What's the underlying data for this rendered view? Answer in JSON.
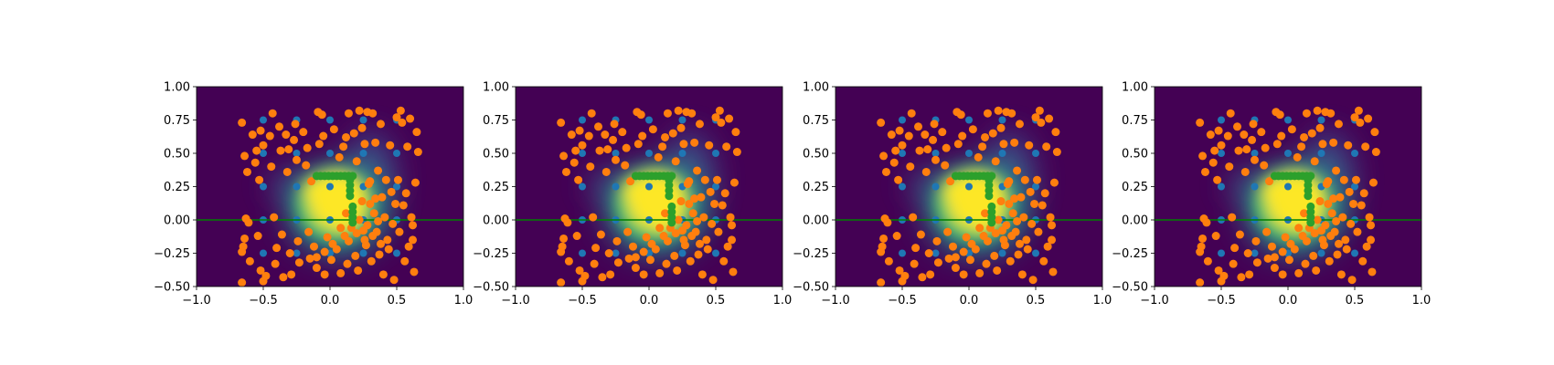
{
  "figure": {
    "panel_count": 4
  },
  "colors": {
    "background_low": "#440154",
    "mid_blue": "#3b528b",
    "mid_teal": "#21918c",
    "mid_green": "#5ec962",
    "background_high": "#fde725",
    "orange_points": "#ff7f0e",
    "blue_points": "#1f77b4",
    "green_points": "#2ca02c",
    "horizontal_line": "#008000"
  },
  "chart_data": [
    {
      "type": "scatter",
      "title": "",
      "xlabel": "",
      "ylabel": "",
      "xlim": [
        -1.0,
        1.0
      ],
      "ylim": [
        -0.5,
        1.0
      ],
      "xticks": [
        "−1.0",
        "−0.5",
        "0.0",
        "0.5",
        "1.0"
      ],
      "yticks": [
        "1.00",
        "0.75",
        "0.50",
        "0.25",
        "0.00",
        "−0.25",
        "−0.50"
      ],
      "grid": false,
      "legend": "none",
      "background": "heatmap",
      "hline_y": 0.0
    },
    {
      "type": "scatter",
      "title": "",
      "xlabel": "",
      "ylabel": "",
      "xlim": [
        -1.0,
        1.0
      ],
      "ylim": [
        -0.5,
        1.0
      ],
      "xticks": [
        "−1.0",
        "−0.5",
        "0.0",
        "0.5",
        "1.0"
      ],
      "yticks": [
        "1.00",
        "0.75",
        "0.50",
        "0.25",
        "0.00",
        "−0.25",
        "−0.50"
      ],
      "grid": false,
      "legend": "none",
      "background": "heatmap",
      "hline_y": 0.0
    },
    {
      "type": "scatter",
      "title": "",
      "xlabel": "",
      "ylabel": "",
      "xlim": [
        -1.0,
        1.0
      ],
      "ylim": [
        -0.5,
        1.0
      ],
      "xticks": [
        "−1.0",
        "−0.5",
        "0.0",
        "0.5",
        "1.0"
      ],
      "yticks": [
        "1.00",
        "0.75",
        "0.50",
        "0.25",
        "0.00",
        "−0.25",
        "−0.50"
      ],
      "grid": false,
      "legend": "none",
      "background": "heatmap",
      "hline_y": 0.0
    },
    {
      "type": "scatter",
      "title": "",
      "xlabel": "",
      "ylabel": "",
      "xlim": [
        -1.0,
        1.0
      ],
      "ylim": [
        -0.5,
        1.0
      ],
      "xticks": [
        "−1.0",
        "−0.5",
        "0.0",
        "0.5",
        "1.0"
      ],
      "yticks": [
        "1.00",
        "0.75",
        "0.50",
        "0.25",
        "0.00",
        "−0.25",
        "−0.50"
      ],
      "grid": false,
      "legend": "none",
      "background": "heatmap",
      "hline_y": 0.0
    }
  ],
  "series": {
    "blue": [
      [
        -0.5,
        0.75
      ],
      [
        -0.25,
        0.75
      ],
      [
        0.0,
        0.75
      ],
      [
        0.25,
        0.75
      ],
      [
        0.5,
        0.75
      ],
      [
        -0.5,
        0.5
      ],
      [
        -0.25,
        0.5
      ],
      [
        0.0,
        0.5
      ],
      [
        0.25,
        0.5
      ],
      [
        0.5,
        0.5
      ],
      [
        -0.5,
        0.25
      ],
      [
        -0.25,
        0.25
      ],
      [
        0.0,
        0.25
      ],
      [
        0.25,
        0.25
      ],
      [
        0.5,
        0.25
      ],
      [
        -0.5,
        0.0
      ],
      [
        -0.25,
        0.0
      ],
      [
        0.0,
        0.0
      ],
      [
        0.25,
        0.0
      ],
      [
        0.5,
        0.0
      ],
      [
        -0.5,
        -0.25
      ],
      [
        -0.25,
        -0.25
      ],
      [
        0.0,
        -0.25
      ],
      [
        0.25,
        -0.25
      ],
      [
        0.5,
        -0.25
      ]
    ],
    "green": [
      [
        -0.1,
        0.33
      ],
      [
        -0.07,
        0.33
      ],
      [
        -0.04,
        0.33
      ],
      [
        -0.01,
        0.33
      ],
      [
        0.02,
        0.33
      ],
      [
        0.05,
        0.33
      ],
      [
        0.08,
        0.33
      ],
      [
        0.11,
        0.33
      ],
      [
        0.14,
        0.33
      ],
      [
        0.17,
        0.33
      ],
      [
        0.15,
        0.3
      ],
      [
        0.15,
        0.26
      ],
      [
        0.15,
        0.22
      ],
      [
        0.15,
        0.18
      ],
      [
        0.17,
        0.1
      ],
      [
        0.17,
        0.06
      ],
      [
        0.17,
        0.02
      ],
      [
        0.17,
        -0.02
      ]
    ],
    "orange": [
      [
        -0.66,
        0.73
      ],
      [
        -0.64,
        0.48
      ],
      [
        -0.62,
        0.36
      ],
      [
        -0.63,
        0.01
      ],
      [
        -0.61,
        -0.02
      ],
      [
        -0.64,
        -0.14
      ],
      [
        -0.65,
        -0.2
      ],
      [
        -0.66,
        -0.24
      ],
      [
        -0.6,
        -0.31
      ],
      [
        -0.66,
        -0.47
      ],
      [
        -0.58,
        0.64
      ],
      [
        -0.55,
        0.52
      ],
      [
        -0.56,
        0.43
      ],
      [
        -0.53,
        0.3
      ],
      [
        -0.52,
        0.67
      ],
      [
        -0.5,
        0.56
      ],
      [
        -0.54,
        -0.12
      ],
      [
        -0.52,
        -0.38
      ],
      [
        -0.5,
        -0.46
      ],
      [
        -0.48,
        -0.42
      ],
      [
        -0.45,
        0.63
      ],
      [
        -0.43,
        0.8
      ],
      [
        -0.44,
        0.4
      ],
      [
        -0.42,
        0.02
      ],
      [
        -0.4,
        -0.21
      ],
      [
        -0.41,
        -0.33
      ],
      [
        -0.38,
        0.7
      ],
      [
        -0.37,
        0.52
      ],
      [
        -0.36,
        -0.11
      ],
      [
        -0.35,
        -0.43
      ],
      [
        -0.33,
        0.64
      ],
      [
        -0.32,
        0.36
      ],
      [
        -0.31,
        0.53
      ],
      [
        -0.3,
        -0.25
      ],
      [
        -0.29,
        -0.41
      ],
      [
        -0.27,
        0.6
      ],
      [
        -0.26,
        0.72
      ],
      [
        -0.25,
        0.45
      ],
      [
        -0.24,
        -0.16
      ],
      [
        -0.23,
        -0.32
      ],
      [
        -0.2,
        0.66
      ],
      [
        -0.18,
        0.41
      ],
      [
        -0.17,
        0.54
      ],
      [
        -0.16,
        -0.09
      ],
      [
        -0.15,
        -0.29
      ],
      [
        -0.14,
        0.29
      ],
      [
        -0.12,
        -0.2
      ],
      [
        -0.1,
        -0.36
      ],
      [
        -0.09,
        0.81
      ],
      [
        -0.08,
        0.57
      ],
      [
        -0.06,
        0.79
      ],
      [
        -0.05,
        0.63
      ],
      [
        -0.04,
        -0.41
      ],
      [
        -0.02,
        -0.13
      ],
      [
        0.01,
        -0.3
      ],
      [
        0.03,
        0.68
      ],
      [
        0.05,
        -0.22
      ],
      [
        0.07,
        0.47
      ],
      [
        0.08,
        -0.4
      ],
      [
        0.1,
        0.55
      ],
      [
        0.11,
        -0.12
      ],
      [
        0.12,
        0.62
      ],
      [
        0.13,
        -0.33
      ],
      [
        0.14,
        0.8
      ],
      [
        0.16,
        -0.06
      ],
      [
        0.18,
        0.65
      ],
      [
        0.19,
        -0.27
      ],
      [
        0.2,
        0.44
      ],
      [
        0.21,
        -0.38
      ],
      [
        0.22,
        0.82
      ],
      [
        0.24,
        0.69
      ],
      [
        0.25,
        -0.08
      ],
      [
        0.26,
        0.57
      ],
      [
        0.27,
        -0.19
      ],
      [
        0.28,
        0.81
      ],
      [
        0.29,
        0.27
      ],
      [
        0.3,
        0.12
      ],
      [
        0.31,
        -0.31
      ],
      [
        0.32,
        0.8
      ],
      [
        0.33,
        0.05
      ],
      [
        0.34,
        0.58
      ],
      [
        0.35,
        -0.09
      ],
      [
        0.36,
        0.37
      ],
      [
        0.37,
        -0.26
      ],
      [
        0.38,
        0.72
      ],
      [
        0.39,
        0.17
      ],
      [
        0.4,
        -0.41
      ],
      [
        0.41,
        0.02
      ],
      [
        0.42,
        0.3
      ],
      [
        0.43,
        -0.15
      ],
      [
        0.45,
        0.56
      ],
      [
        0.46,
        0.21
      ],
      [
        0.47,
        -0.03
      ],
      [
        0.48,
        -0.45
      ],
      [
        0.49,
        0.12
      ],
      [
        0.5,
        0.77
      ],
      [
        0.51,
        0.3
      ],
      [
        0.52,
        -0.09
      ],
      [
        0.53,
        0.82
      ],
      [
        0.54,
        0.73
      ],
      [
        0.55,
        0.11
      ],
      [
        0.56,
        -0.31
      ],
      [
        0.57,
        0.2
      ],
      [
        0.58,
        0.55
      ],
      [
        0.59,
        -0.2
      ],
      [
        0.6,
        0.76
      ],
      [
        0.61,
        0.02
      ],
      [
        0.62,
        -0.04
      ],
      [
        0.63,
        -0.39
      ],
      [
        0.65,
        0.66
      ],
      [
        0.66,
        0.51
      ],
      [
        0.64,
        0.28
      ],
      [
        0.62,
        -0.15
      ],
      [
        0.12,
        0.05
      ],
      [
        0.22,
        0.0
      ],
      [
        0.28,
        -0.04
      ],
      [
        0.34,
        0.16
      ],
      [
        0.24,
        0.14
      ],
      [
        0.3,
        0.29
      ],
      [
        0.36,
        -0.01
      ],
      [
        0.08,
        -0.06
      ],
      [
        0.14,
        -0.16
      ],
      [
        0.2,
        -0.1
      ],
      [
        0.26,
        -0.15
      ],
      [
        0.32,
        -0.12
      ],
      [
        0.38,
        -0.18
      ],
      [
        0.44,
        -0.22
      ],
      [
        0.02,
        -0.18
      ],
      [
        -0.04,
        -0.24
      ],
      [
        -0.1,
        -0.28
      ]
    ]
  }
}
